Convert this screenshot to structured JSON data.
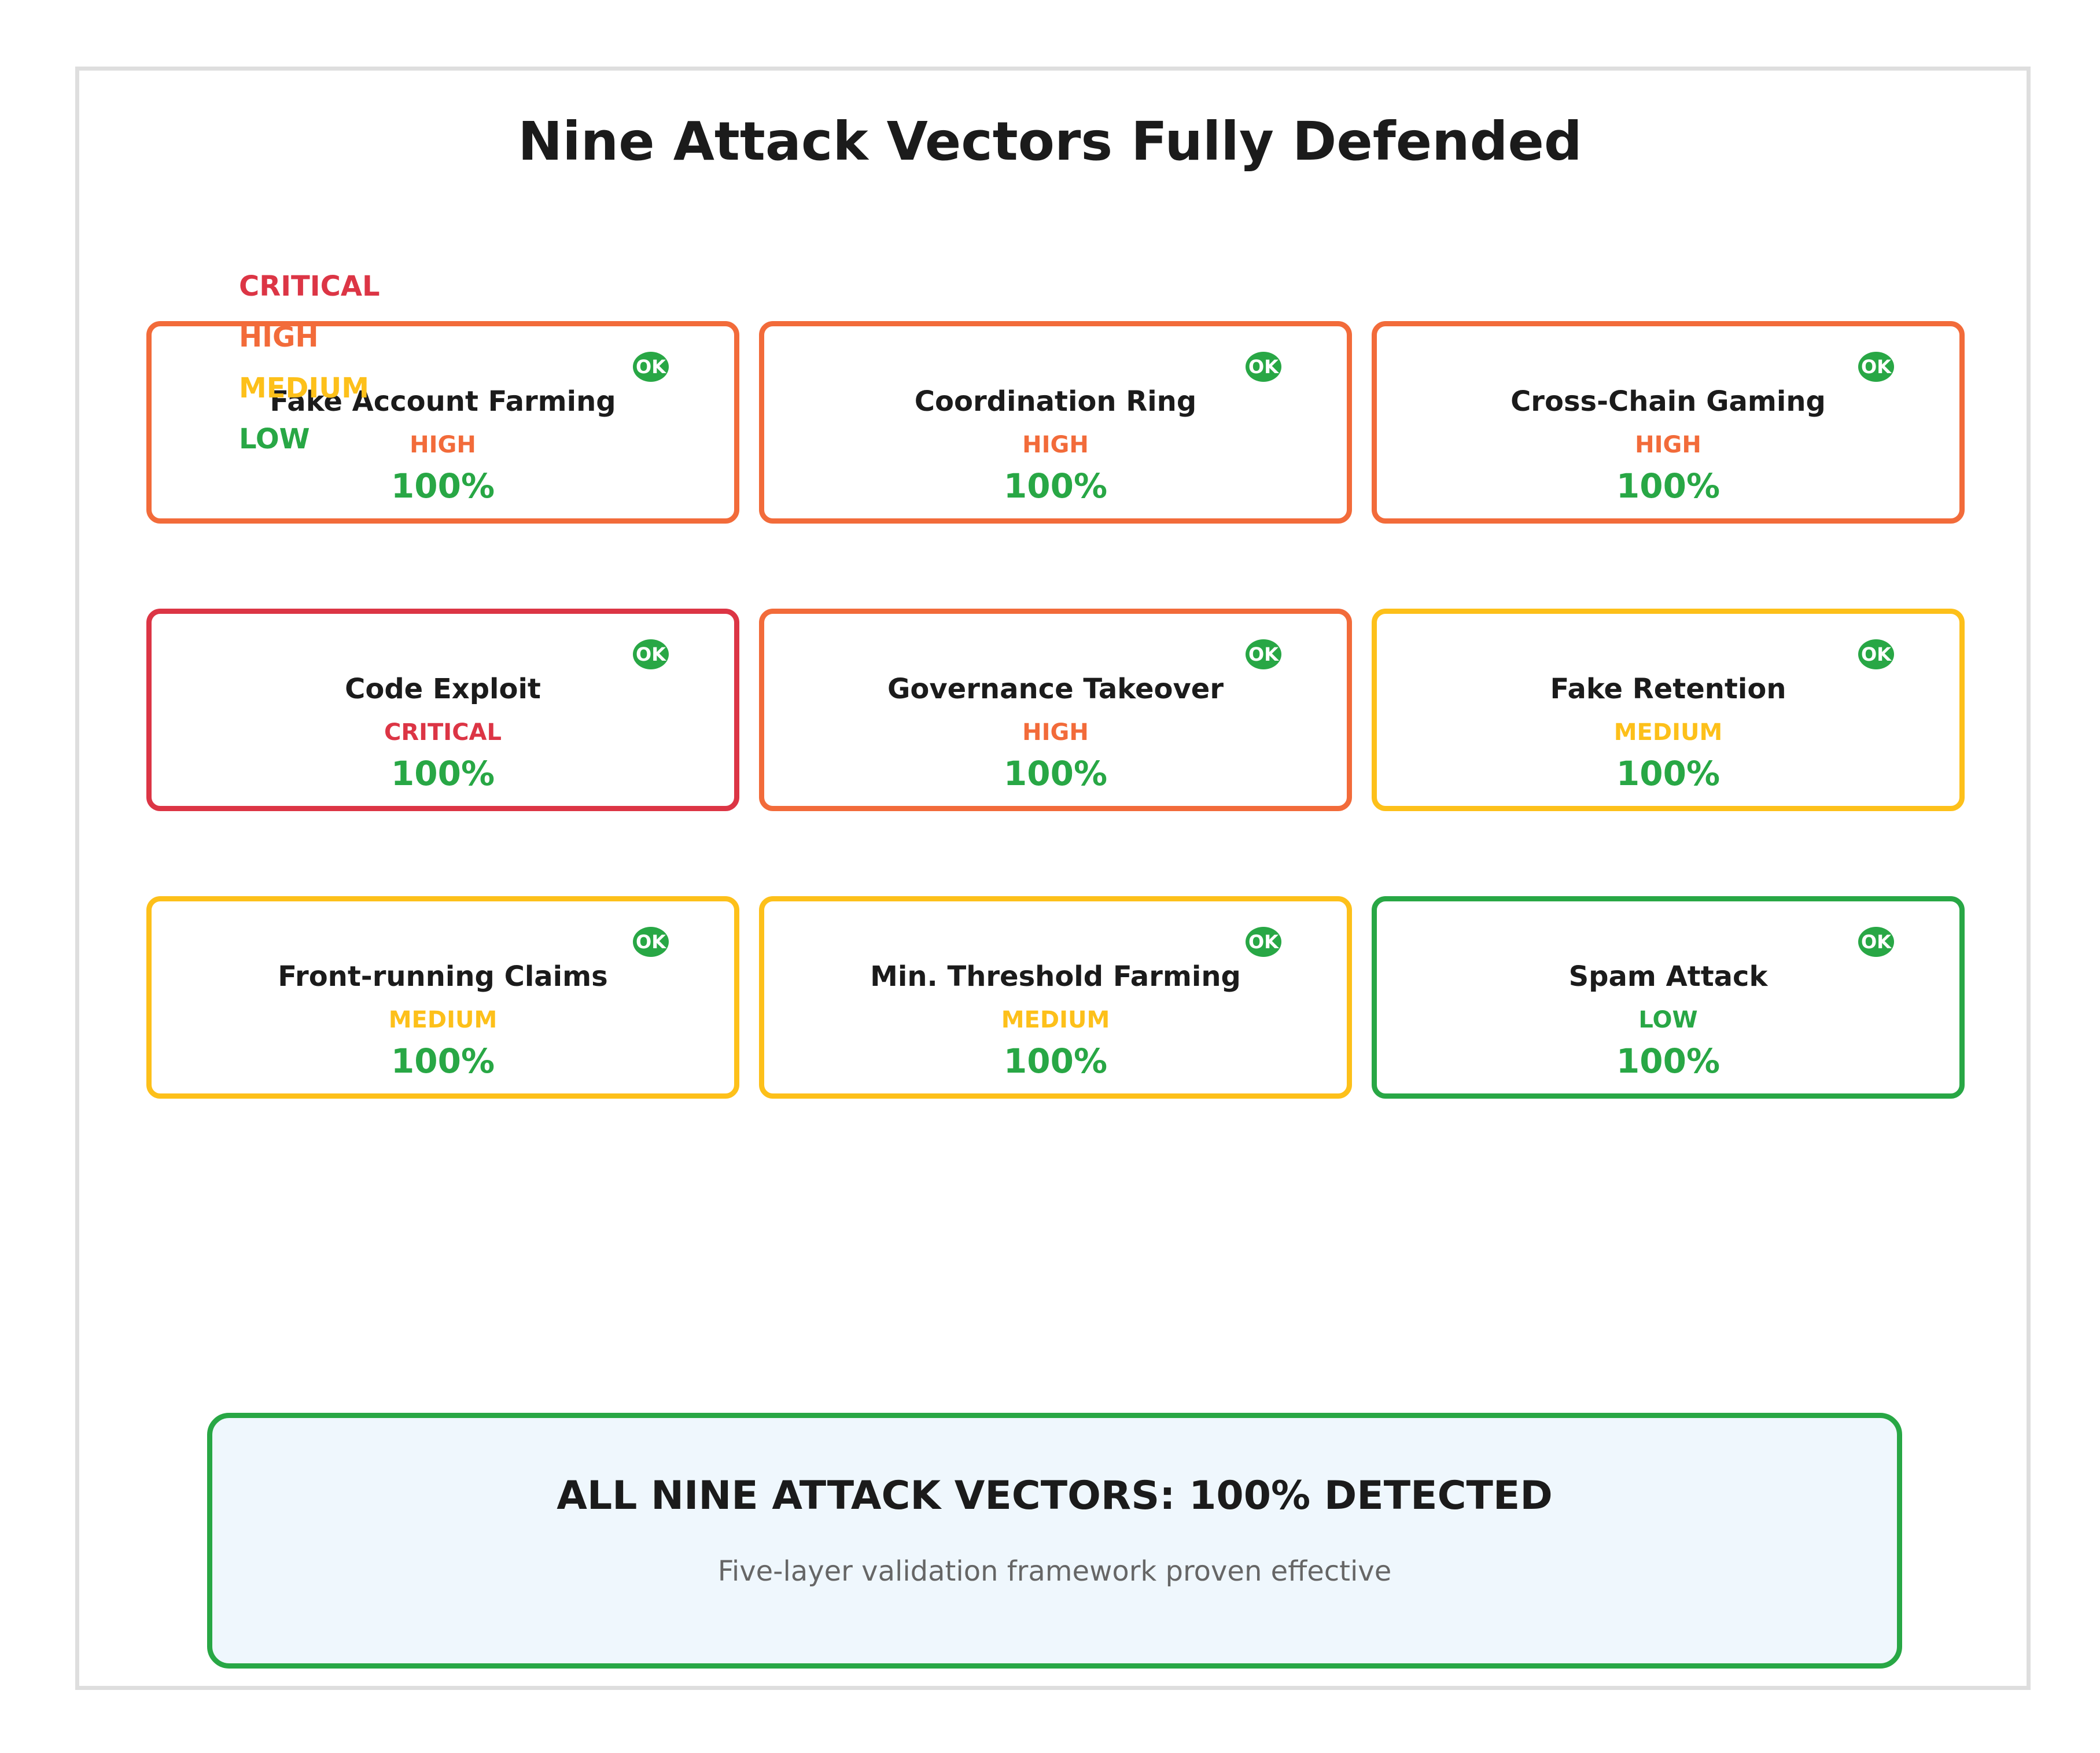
{
  "title": "Nine Attack Vectors Fully Defended",
  "colors": {
    "CRITICAL": "#dc3545",
    "HIGH": "#f26b3a",
    "MEDIUM": "#fdc01a",
    "LOW": "#28a745",
    "success": "#28a745"
  },
  "legend": [
    "CRITICAL",
    "HIGH",
    "MEDIUM",
    "LOW"
  ],
  "vectors": [
    {
      "name": "Fake Account Farming",
      "level": "HIGH",
      "rate": "100%",
      "status": "OK"
    },
    {
      "name": "Coordination Ring",
      "level": "HIGH",
      "rate": "100%",
      "status": "OK"
    },
    {
      "name": "Cross-Chain Gaming",
      "level": "HIGH",
      "rate": "100%",
      "status": "OK"
    },
    {
      "name": "Code Exploit",
      "level": "CRITICAL",
      "rate": "100%",
      "status": "OK"
    },
    {
      "name": "Governance Takeover",
      "level": "HIGH",
      "rate": "100%",
      "status": "OK"
    },
    {
      "name": "Fake Retention",
      "level": "MEDIUM",
      "rate": "100%",
      "status": "OK"
    },
    {
      "name": "Front-running Claims",
      "level": "MEDIUM",
      "rate": "100%",
      "status": "OK"
    },
    {
      "name": "Min. Threshold Farming",
      "level": "MEDIUM",
      "rate": "100%",
      "status": "OK"
    },
    {
      "name": "Spam Attack",
      "level": "LOW",
      "rate": "100%",
      "status": "OK"
    }
  ],
  "summary": {
    "title": "ALL NINE ATTACK VECTORS: 100% DETECTED",
    "subtitle": "Five-layer validation framework proven effective"
  }
}
